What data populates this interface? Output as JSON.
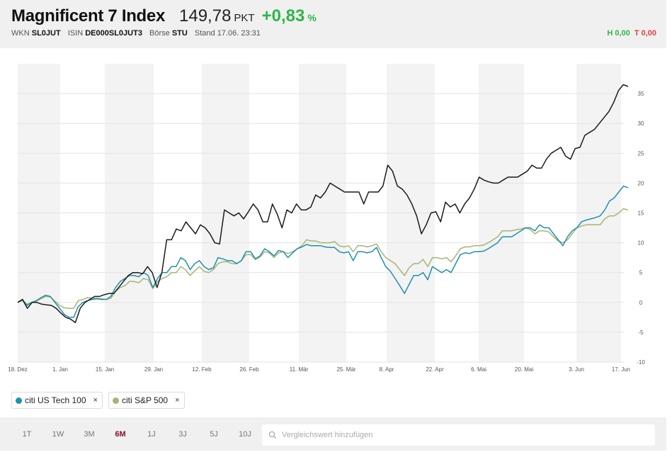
{
  "header": {
    "title": "Magnificent 7 Index",
    "price": "149,78",
    "unit": "PKT",
    "change": "+0,83",
    "change_pct_sign": "%",
    "meta": [
      {
        "label": "WKN",
        "value": "SL0JUT"
      },
      {
        "label": "ISIN",
        "value": "DE000SL0JUT3"
      },
      {
        "label": "Börse",
        "value": "STU"
      }
    ],
    "stand": "Stand 17.06. 23:31",
    "high": "H 0,00",
    "low": "T 0,00"
  },
  "colors": {
    "main": "#1b1b1b",
    "tech": "#1f8fb0",
    "sp": "#a7b474",
    "positive": "#2fb64a",
    "negative": "#e04040",
    "active_range": "#8a1020"
  },
  "chart_data": {
    "type": "line",
    "xlabels": [
      "18. Dez",
      "1. Jan",
      "15. Jan",
      "29. Jan",
      "12. Feb",
      "26. Feb",
      "11. Mär",
      "25. Mär",
      "8. Apr",
      "22. Apr",
      "6. Mai",
      "20. Mai",
      "3. Jun",
      "17. Jun"
    ],
    "ylim": [
      -10,
      40
    ],
    "yticks": [
      -10,
      -5,
      0,
      5,
      10,
      15,
      20,
      25,
      30,
      35
    ],
    "grid": true,
    "series": [
      {
        "name": "Magnificent 7 Index",
        "color": "#1b1b1b",
        "values": [
          0,
          0.5,
          -1,
          0,
          0,
          -0.3,
          -0.4,
          -0.5,
          -1,
          -1.8,
          -2.5,
          -2.8,
          -3.4,
          -1,
          0,
          0.5,
          1,
          1,
          1.3,
          1.5,
          1.5,
          2.5,
          3.5,
          4.5,
          5,
          5,
          4.8,
          6,
          5,
          2.5,
          5,
          10.5,
          10.5,
          12.3,
          12,
          13.5,
          12.5,
          11.5,
          13,
          12.5,
          11.5,
          10,
          9.8,
          15.5,
          15,
          14.5,
          15,
          14,
          15.2,
          16.5,
          15.5,
          13.5,
          13.5,
          16.5,
          14.8,
          12.5,
          15.5,
          15,
          16.5,
          15.5,
          15.5,
          16,
          18,
          17.5,
          18.5,
          20,
          19.5,
          19,
          18.5,
          18.5,
          18.5,
          18.5,
          16.5,
          18.5,
          18.5,
          18.5,
          19.5,
          23,
          22,
          19.5,
          19,
          18,
          16.5,
          14.5,
          11.5,
          13,
          15,
          15.2,
          13.5,
          16.8,
          16,
          16.5,
          15,
          16.5,
          17.5,
          19,
          21,
          20.5,
          20.2,
          20,
          20,
          20.5,
          21,
          21,
          21,
          21.5,
          22,
          23,
          22.5,
          22.5,
          24,
          25,
          25.5,
          26,
          24.5,
          24,
          25.8,
          26,
          28,
          28.5,
          29,
          30,
          31,
          32,
          33.5,
          35.5,
          36.5
        ],
        "values_tail": [
          36.2
        ]
      },
      {
        "name": "citi US Tech 100",
        "color": "#1f8fb0",
        "values": [
          0,
          0.5,
          -0.5,
          0,
          0.3,
          0.8,
          1.2,
          1,
          0,
          -1,
          -2,
          -2.5,
          -2.5,
          -0.7,
          0,
          0.3,
          0.5,
          0.6,
          0.5,
          0.5,
          1,
          2.5,
          3.5,
          4,
          4.5,
          4.5,
          4.3,
          5,
          4.5,
          2.5,
          4,
          5,
          5,
          6,
          6,
          7.5,
          7,
          5.5,
          6.5,
          7,
          6,
          5.5,
          5.8,
          7.5,
          7.3,
          7,
          7,
          6.5,
          7,
          8.5,
          8.5,
          7.3,
          7.8,
          9,
          8.5,
          7.8,
          8.7,
          8.5,
          7.5,
          8.3,
          9,
          9.3,
          9.7,
          9.5,
          9.5,
          9.5,
          9.3,
          9.2,
          9.2,
          8.5,
          8.3,
          8.5,
          7,
          8.5,
          8.5,
          8.3,
          8.5,
          9.2,
          7.5,
          6,
          5.2,
          4,
          2.8,
          1.5,
          3,
          4.5,
          4.5,
          5,
          3.8,
          6,
          5.5,
          5,
          5.5,
          5,
          6.5,
          8,
          8.3,
          8.2,
          8.5,
          8.5,
          8.6,
          9,
          9.5,
          10,
          11,
          11,
          11,
          11.5,
          12,
          12.5,
          12.5,
          12,
          13,
          12.5,
          12.5,
          11.5,
          10.5,
          9.5,
          11,
          12,
          12.5,
          13.5,
          13.8,
          14,
          14.2,
          14.5,
          15.5,
          17,
          17.5,
          18.5,
          19.5
        ],
        "values_tail": [
          19.2
        ]
      },
      {
        "name": "citi S&P 500",
        "color": "#a7b474",
        "values": [
          0,
          0.3,
          -0.3,
          0,
          0.2,
          0.6,
          1,
          0.9,
          0.2,
          -0.5,
          -0.9,
          -1,
          -1,
          0.3,
          0.5,
          0.8,
          0.7,
          0.7,
          0.6,
          0.5,
          0.7,
          1.8,
          2.5,
          2.8,
          3.5,
          3.5,
          3.3,
          4,
          3.8,
          2.3,
          3.5,
          4,
          4.3,
          5,
          5,
          6,
          5.5,
          4.5,
          5.3,
          6,
          5.2,
          5,
          5.5,
          6.5,
          6.8,
          6.8,
          6.5,
          6.5,
          7,
          8,
          8,
          7.2,
          7.6,
          8.5,
          8.3,
          7.5,
          8.3,
          8.5,
          8.2,
          8.5,
          9,
          9.5,
          10.5,
          10.3,
          10.3,
          10,
          10,
          10,
          10.2,
          9.5,
          9.3,
          9.5,
          8.5,
          9.5,
          9.5,
          9.3,
          9.5,
          9.8,
          8.5,
          7.5,
          7,
          6.5,
          5.5,
          4.5,
          5.8,
          6.5,
          6.5,
          7.2,
          6,
          7.5,
          7.5,
          7.3,
          7.5,
          6.8,
          7.8,
          9,
          9.3,
          9.3,
          9.5,
          9.5,
          9.6,
          10,
          10.5,
          11,
          12,
          12,
          12,
          12.2,
          12.3,
          12.5,
          12.2,
          11.5,
          12,
          12,
          11.8,
          11,
          10.3,
          10,
          10.5,
          11.5,
          12.5,
          12.8,
          13,
          13,
          13,
          13,
          14,
          14.5,
          14.5,
          15,
          15.7
        ],
        "values_tail": [
          15.5
        ]
      }
    ]
  },
  "legend": [
    {
      "label": "citi US Tech 100",
      "color": "#1f8fb0",
      "remove": "×"
    },
    {
      "label": "citi S&P 500",
      "color": "#a7b474",
      "remove": "×"
    }
  ],
  "ranges": [
    "1T",
    "1W",
    "3M",
    "6M",
    "1J",
    "3J",
    "5J",
    "10J"
  ],
  "active_range": "6M",
  "search": {
    "placeholder": "Vergleichswert hinzufügen"
  }
}
